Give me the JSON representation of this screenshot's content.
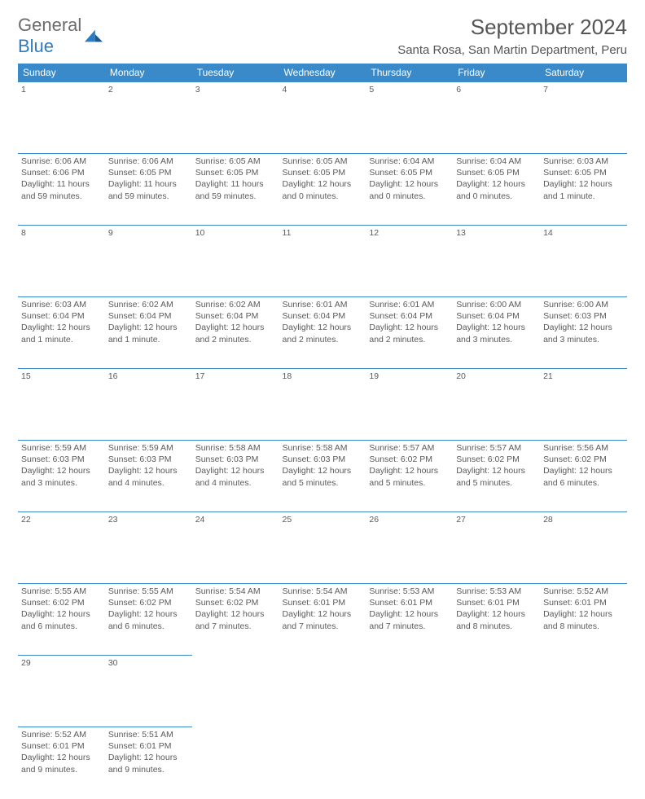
{
  "logo": {
    "text1": "General",
    "text2": "Blue"
  },
  "title": "September 2024",
  "location": "Santa Rosa, San Martin Department, Peru",
  "colors": {
    "header_bg": "#3a8ac9",
    "header_text": "#ffffff",
    "rule": "#3a8ac9",
    "shaded": "#efefef",
    "text": "#5a5a5a",
    "logo_gray": "#6b6b6b",
    "logo_blue": "#2f7bbf"
  },
  "weekdays": [
    "Sunday",
    "Monday",
    "Tuesday",
    "Wednesday",
    "Thursday",
    "Friday",
    "Saturday"
  ],
  "days": [
    {
      "n": 1,
      "sr": "6:06 AM",
      "ss": "6:06 PM",
      "dl": "11 hours and 59 minutes."
    },
    {
      "n": 2,
      "sr": "6:06 AM",
      "ss": "6:05 PM",
      "dl": "11 hours and 59 minutes."
    },
    {
      "n": 3,
      "sr": "6:05 AM",
      "ss": "6:05 PM",
      "dl": "11 hours and 59 minutes."
    },
    {
      "n": 4,
      "sr": "6:05 AM",
      "ss": "6:05 PM",
      "dl": "12 hours and 0 minutes."
    },
    {
      "n": 5,
      "sr": "6:04 AM",
      "ss": "6:05 PM",
      "dl": "12 hours and 0 minutes."
    },
    {
      "n": 6,
      "sr": "6:04 AM",
      "ss": "6:05 PM",
      "dl": "12 hours and 0 minutes."
    },
    {
      "n": 7,
      "sr": "6:03 AM",
      "ss": "6:05 PM",
      "dl": "12 hours and 1 minute."
    },
    {
      "n": 8,
      "sr": "6:03 AM",
      "ss": "6:04 PM",
      "dl": "12 hours and 1 minute."
    },
    {
      "n": 9,
      "sr": "6:02 AM",
      "ss": "6:04 PM",
      "dl": "12 hours and 1 minute."
    },
    {
      "n": 10,
      "sr": "6:02 AM",
      "ss": "6:04 PM",
      "dl": "12 hours and 2 minutes."
    },
    {
      "n": 11,
      "sr": "6:01 AM",
      "ss": "6:04 PM",
      "dl": "12 hours and 2 minutes."
    },
    {
      "n": 12,
      "sr": "6:01 AM",
      "ss": "6:04 PM",
      "dl": "12 hours and 2 minutes."
    },
    {
      "n": 13,
      "sr": "6:00 AM",
      "ss": "6:04 PM",
      "dl": "12 hours and 3 minutes."
    },
    {
      "n": 14,
      "sr": "6:00 AM",
      "ss": "6:03 PM",
      "dl": "12 hours and 3 minutes."
    },
    {
      "n": 15,
      "sr": "5:59 AM",
      "ss": "6:03 PM",
      "dl": "12 hours and 3 minutes."
    },
    {
      "n": 16,
      "sr": "5:59 AM",
      "ss": "6:03 PM",
      "dl": "12 hours and 4 minutes."
    },
    {
      "n": 17,
      "sr": "5:58 AM",
      "ss": "6:03 PM",
      "dl": "12 hours and 4 minutes."
    },
    {
      "n": 18,
      "sr": "5:58 AM",
      "ss": "6:03 PM",
      "dl": "12 hours and 5 minutes."
    },
    {
      "n": 19,
      "sr": "5:57 AM",
      "ss": "6:02 PM",
      "dl": "12 hours and 5 minutes."
    },
    {
      "n": 20,
      "sr": "5:57 AM",
      "ss": "6:02 PM",
      "dl": "12 hours and 5 minutes."
    },
    {
      "n": 21,
      "sr": "5:56 AM",
      "ss": "6:02 PM",
      "dl": "12 hours and 6 minutes."
    },
    {
      "n": 22,
      "sr": "5:55 AM",
      "ss": "6:02 PM",
      "dl": "12 hours and 6 minutes."
    },
    {
      "n": 23,
      "sr": "5:55 AM",
      "ss": "6:02 PM",
      "dl": "12 hours and 6 minutes."
    },
    {
      "n": 24,
      "sr": "5:54 AM",
      "ss": "6:02 PM",
      "dl": "12 hours and 7 minutes."
    },
    {
      "n": 25,
      "sr": "5:54 AM",
      "ss": "6:01 PM",
      "dl": "12 hours and 7 minutes."
    },
    {
      "n": 26,
      "sr": "5:53 AM",
      "ss": "6:01 PM",
      "dl": "12 hours and 7 minutes."
    },
    {
      "n": 27,
      "sr": "5:53 AM",
      "ss": "6:01 PM",
      "dl": "12 hours and 8 minutes."
    },
    {
      "n": 28,
      "sr": "5:52 AM",
      "ss": "6:01 PM",
      "dl": "12 hours and 8 minutes."
    },
    {
      "n": 29,
      "sr": "5:52 AM",
      "ss": "6:01 PM",
      "dl": "12 hours and 9 minutes."
    },
    {
      "n": 30,
      "sr": "5:51 AM",
      "ss": "6:01 PM",
      "dl": "12 hours and 9 minutes."
    }
  ],
  "labels": {
    "sunrise": "Sunrise: ",
    "sunset": "Sunset: ",
    "daylight": "Daylight: "
  }
}
